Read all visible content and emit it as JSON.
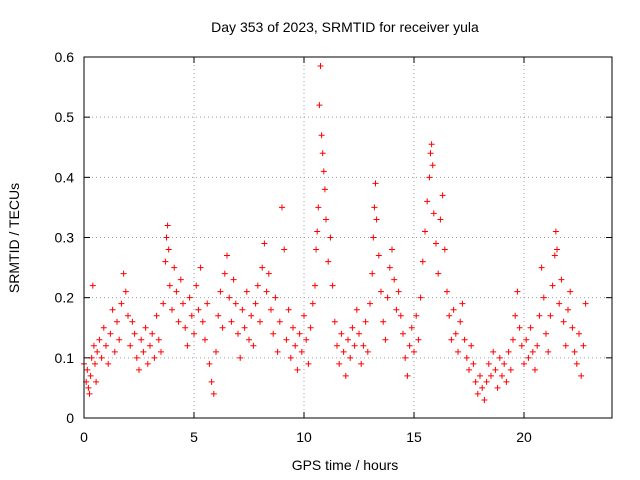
{
  "chart_data": {
    "type": "scatter",
    "title": "Day 353 of 2023, SRMTID for receiver yula",
    "xlabel": "GPS time / hours",
    "ylabel": "SRMTID / TECUs",
    "xlim": [
      0,
      24
    ],
    "ylim": [
      0,
      0.6
    ],
    "x_ticks": [
      0,
      5,
      10,
      15,
      20
    ],
    "x_tick_labels": [
      "0",
      "5",
      "10",
      "15",
      "20"
    ],
    "y_ticks": [
      0,
      0.1,
      0.2,
      0.3,
      0.4,
      0.5,
      0.6
    ],
    "y_tick_labels": [
      "0",
      "0.1",
      "0.2",
      "0.3",
      "0.4",
      "0.5",
      "0.6"
    ],
    "grid": true,
    "marker": "+",
    "color": "#ff0000",
    "series": [
      {
        "name": "SRMTID",
        "points": [
          [
            0.0,
            0.09
          ],
          [
            0.1,
            0.06
          ],
          [
            0.15,
            0.08
          ],
          [
            0.2,
            0.05
          ],
          [
            0.25,
            0.04
          ],
          [
            0.3,
            0.07
          ],
          [
            0.35,
            0.1
          ],
          [
            0.4,
            0.22
          ],
          [
            0.45,
            0.12
          ],
          [
            0.5,
            0.09
          ],
          [
            0.55,
            0.06
          ],
          [
            0.6,
            0.11
          ],
          [
            0.7,
            0.13
          ],
          [
            0.8,
            0.1
          ],
          [
            0.9,
            0.15
          ],
          [
            1.0,
            0.12
          ],
          [
            1.1,
            0.09
          ],
          [
            1.2,
            0.14
          ],
          [
            1.3,
            0.18
          ],
          [
            1.4,
            0.11
          ],
          [
            1.5,
            0.16
          ],
          [
            1.6,
            0.13
          ],
          [
            1.7,
            0.19
          ],
          [
            1.8,
            0.24
          ],
          [
            1.9,
            0.21
          ],
          [
            2.0,
            0.17
          ],
          [
            2.1,
            0.12
          ],
          [
            2.2,
            0.16
          ],
          [
            2.3,
            0.14
          ],
          [
            2.4,
            0.1
          ],
          [
            2.5,
            0.08
          ],
          [
            2.6,
            0.13
          ],
          [
            2.7,
            0.11
          ],
          [
            2.8,
            0.15
          ],
          [
            2.9,
            0.09
          ],
          [
            3.0,
            0.12
          ],
          [
            3.1,
            0.14
          ],
          [
            3.2,
            0.1
          ],
          [
            3.3,
            0.17
          ],
          [
            3.4,
            0.13
          ],
          [
            3.5,
            0.11
          ],
          [
            3.6,
            0.19
          ],
          [
            3.7,
            0.26
          ],
          [
            3.75,
            0.3
          ],
          [
            3.8,
            0.32
          ],
          [
            3.85,
            0.28
          ],
          [
            3.9,
            0.22
          ],
          [
            4.0,
            0.18
          ],
          [
            4.1,
            0.25
          ],
          [
            4.2,
            0.21
          ],
          [
            4.3,
            0.16
          ],
          [
            4.4,
            0.23
          ],
          [
            4.5,
            0.19
          ],
          [
            4.6,
            0.15
          ],
          [
            4.7,
            0.12
          ],
          [
            4.8,
            0.2
          ],
          [
            4.9,
            0.17
          ],
          [
            5.0,
            0.14
          ],
          [
            5.1,
            0.22
          ],
          [
            5.2,
            0.18
          ],
          [
            5.3,
            0.25
          ],
          [
            5.4,
            0.16
          ],
          [
            5.5,
            0.13
          ],
          [
            5.6,
            0.19
          ],
          [
            5.7,
            0.09
          ],
          [
            5.8,
            0.06
          ],
          [
            5.9,
            0.04
          ],
          [
            6.0,
            0.11
          ],
          [
            6.1,
            0.17
          ],
          [
            6.2,
            0.21
          ],
          [
            6.3,
            0.15
          ],
          [
            6.4,
            0.24
          ],
          [
            6.5,
            0.27
          ],
          [
            6.6,
            0.2
          ],
          [
            6.7,
            0.16
          ],
          [
            6.8,
            0.23
          ],
          [
            6.9,
            0.19
          ],
          [
            7.0,
            0.14
          ],
          [
            7.1,
            0.1
          ],
          [
            7.2,
            0.18
          ],
          [
            7.3,
            0.15
          ],
          [
            7.4,
            0.21
          ],
          [
            7.5,
            0.13
          ],
          [
            7.6,
            0.17
          ],
          [
            7.7,
            0.12
          ],
          [
            7.8,
            0.19
          ],
          [
            7.9,
            0.22
          ],
          [
            8.0,
            0.16
          ],
          [
            8.1,
            0.25
          ],
          [
            8.2,
            0.29
          ],
          [
            8.3,
            0.21
          ],
          [
            8.4,
            0.24
          ],
          [
            8.5,
            0.18
          ],
          [
            8.6,
            0.14
          ],
          [
            8.7,
            0.2
          ],
          [
            8.8,
            0.11
          ],
          [
            8.9,
            0.16
          ],
          [
            9.0,
            0.35
          ],
          [
            9.1,
            0.28
          ],
          [
            9.2,
            0.13
          ],
          [
            9.3,
            0.18
          ],
          [
            9.4,
            0.1
          ],
          [
            9.5,
            0.15
          ],
          [
            9.6,
            0.12
          ],
          [
            9.7,
            0.08
          ],
          [
            9.8,
            0.14
          ],
          [
            9.9,
            0.11
          ],
          [
            10.0,
            0.17
          ],
          [
            10.1,
            0.13
          ],
          [
            10.2,
            0.09
          ],
          [
            10.3,
            0.15
          ],
          [
            10.4,
            0.19
          ],
          [
            10.5,
            0.22
          ],
          [
            10.55,
            0.28
          ],
          [
            10.6,
            0.31
          ],
          [
            10.65,
            0.35
          ],
          [
            10.7,
            0.52
          ],
          [
            10.75,
            0.585
          ],
          [
            10.8,
            0.47
          ],
          [
            10.85,
            0.44
          ],
          [
            10.9,
            0.41
          ],
          [
            10.95,
            0.38
          ],
          [
            11.0,
            0.33
          ],
          [
            11.1,
            0.26
          ],
          [
            11.2,
            0.3
          ],
          [
            11.3,
            0.22
          ],
          [
            11.4,
            0.16
          ],
          [
            11.5,
            0.12
          ],
          [
            11.6,
            0.09
          ],
          [
            11.7,
            0.14
          ],
          [
            11.8,
            0.11
          ],
          [
            11.9,
            0.07
          ],
          [
            12.0,
            0.13
          ],
          [
            12.1,
            0.1
          ],
          [
            12.2,
            0.15
          ],
          [
            12.3,
            0.12
          ],
          [
            12.4,
            0.18
          ],
          [
            12.5,
            0.14
          ],
          [
            12.6,
            0.09
          ],
          [
            12.7,
            0.12
          ],
          [
            12.8,
            0.16
          ],
          [
            12.9,
            0.11
          ],
          [
            13.0,
            0.19
          ],
          [
            13.1,
            0.24
          ],
          [
            13.15,
            0.3
          ],
          [
            13.2,
            0.35
          ],
          [
            13.25,
            0.39
          ],
          [
            13.3,
            0.33
          ],
          [
            13.4,
            0.27
          ],
          [
            13.5,
            0.21
          ],
          [
            13.6,
            0.16
          ],
          [
            13.7,
            0.13
          ],
          [
            13.8,
            0.2
          ],
          [
            13.9,
            0.25
          ],
          [
            14.0,
            0.28
          ],
          [
            14.1,
            0.23
          ],
          [
            14.2,
            0.18
          ],
          [
            14.3,
            0.21
          ],
          [
            14.4,
            0.17
          ],
          [
            14.5,
            0.14
          ],
          [
            14.6,
            0.1
          ],
          [
            14.7,
            0.07
          ],
          [
            14.8,
            0.12
          ],
          [
            14.9,
            0.15
          ],
          [
            15.0,
            0.11
          ],
          [
            15.1,
            0.17
          ],
          [
            15.2,
            0.13
          ],
          [
            15.3,
            0.2
          ],
          [
            15.4,
            0.26
          ],
          [
            15.5,
            0.31
          ],
          [
            15.6,
            0.36
          ],
          [
            15.7,
            0.4
          ],
          [
            15.75,
            0.44
          ],
          [
            15.8,
            0.455
          ],
          [
            15.85,
            0.42
          ],
          [
            15.9,
            0.34
          ],
          [
            16.0,
            0.29
          ],
          [
            16.1,
            0.24
          ],
          [
            16.2,
            0.33
          ],
          [
            16.3,
            0.37
          ],
          [
            16.4,
            0.28
          ],
          [
            16.5,
            0.21
          ],
          [
            16.6,
            0.17
          ],
          [
            16.7,
            0.13
          ],
          [
            16.8,
            0.18
          ],
          [
            16.9,
            0.14
          ],
          [
            17.0,
            0.11
          ],
          [
            17.1,
            0.16
          ],
          [
            17.2,
            0.19
          ],
          [
            17.3,
            0.13
          ],
          [
            17.4,
            0.1
          ],
          [
            17.5,
            0.08
          ],
          [
            17.6,
            0.12
          ],
          [
            17.7,
            0.09
          ],
          [
            17.8,
            0.06
          ],
          [
            17.9,
            0.04
          ],
          [
            18.0,
            0.07
          ],
          [
            18.1,
            0.05
          ],
          [
            18.2,
            0.03
          ],
          [
            18.3,
            0.06
          ],
          [
            18.4,
            0.09
          ],
          [
            18.5,
            0.07
          ],
          [
            18.6,
            0.11
          ],
          [
            18.7,
            0.08
          ],
          [
            18.8,
            0.05
          ],
          [
            18.9,
            0.1
          ],
          [
            19.0,
            0.07
          ],
          [
            19.1,
            0.09
          ],
          [
            19.2,
            0.06
          ],
          [
            19.3,
            0.11
          ],
          [
            19.4,
            0.08
          ],
          [
            19.5,
            0.13
          ],
          [
            19.6,
            0.17
          ],
          [
            19.7,
            0.21
          ],
          [
            19.8,
            0.15
          ],
          [
            19.9,
            0.12
          ],
          [
            20.0,
            0.09
          ],
          [
            20.1,
            0.13
          ],
          [
            20.2,
            0.1
          ],
          [
            20.3,
            0.15
          ],
          [
            20.4,
            0.11
          ],
          [
            20.5,
            0.08
          ],
          [
            20.6,
            0.12
          ],
          [
            20.7,
            0.17
          ],
          [
            20.8,
            0.25
          ],
          [
            20.9,
            0.2
          ],
          [
            21.0,
            0.14
          ],
          [
            21.1,
            0.11
          ],
          [
            21.2,
            0.17
          ],
          [
            21.3,
            0.22
          ],
          [
            21.4,
            0.27
          ],
          [
            21.45,
            0.31
          ],
          [
            21.5,
            0.28
          ],
          [
            21.6,
            0.19
          ],
          [
            21.7,
            0.23
          ],
          [
            21.8,
            0.16
          ],
          [
            21.9,
            0.12
          ],
          [
            22.0,
            0.18
          ],
          [
            22.1,
            0.21
          ],
          [
            22.2,
            0.15
          ],
          [
            22.3,
            0.11
          ],
          [
            22.4,
            0.09
          ],
          [
            22.5,
            0.14
          ],
          [
            22.6,
            0.07
          ],
          [
            22.7,
            0.12
          ],
          [
            22.8,
            0.19
          ]
        ]
      }
    ]
  }
}
